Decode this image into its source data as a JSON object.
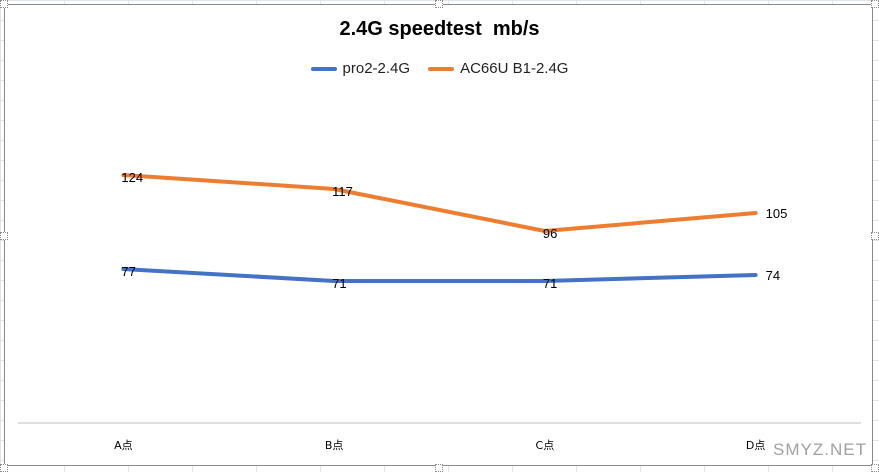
{
  "colors": {
    "series_blue": "#4472c4",
    "series_orange": "#ed7d31",
    "axis": "#bfbfbf",
    "frame": "#8a8a8a"
  },
  "watermark": "SMYZ.NET",
  "chart_data": {
    "type": "line",
    "title": "2.4G speedtest  mb/s",
    "xlabel": "",
    "ylabel": "",
    "categories": [
      "A点",
      "B点",
      "C点",
      "D点"
    ],
    "series": [
      {
        "name": "pro2-2.4G",
        "color": "#4472c4",
        "values": [
          77,
          71,
          71,
          74
        ]
      },
      {
        "name": "AC66U B1-2.4G",
        "color": "#ed7d31",
        "values": [
          124,
          117,
          96,
          105
        ]
      }
    ],
    "ylim": [
      0,
      150
    ],
    "grid": false,
    "legend_position": "top",
    "data_labels": true
  }
}
